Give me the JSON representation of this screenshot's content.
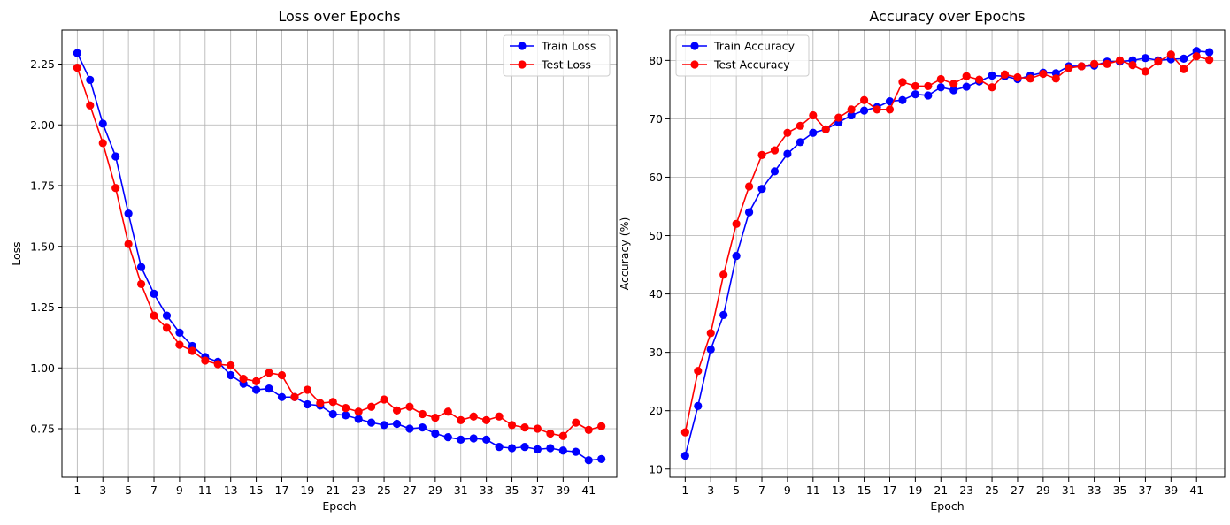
{
  "chart_data": [
    {
      "type": "line",
      "title": "Loss over Epochs",
      "xlabel": "Epoch",
      "ylabel": "Loss",
      "xlim": [
        -0.2,
        43.2
      ],
      "ylim": [
        0.55,
        2.39
      ],
      "xticks": [
        1,
        3,
        5,
        7,
        9,
        11,
        13,
        15,
        17,
        19,
        21,
        23,
        25,
        27,
        29,
        31,
        33,
        35,
        37,
        39,
        41
      ],
      "yticks": [
        0.75,
        1.0,
        1.25,
        1.5,
        1.75,
        2.0,
        2.25
      ],
      "ytick_labels": [
        "0.75",
        "1.00",
        "1.25",
        "1.50",
        "1.75",
        "2.00",
        "2.25"
      ],
      "grid": true,
      "legend": "top-right",
      "x": [
        1,
        2,
        3,
        4,
        5,
        6,
        7,
        8,
        9,
        10,
        11,
        12,
        13,
        14,
        15,
        16,
        17,
        18,
        19,
        20,
        21,
        22,
        23,
        24,
        25,
        26,
        27,
        28,
        29,
        30,
        31,
        32,
        33,
        34,
        35,
        36,
        37,
        38,
        39,
        40,
        41,
        42
      ],
      "series": [
        {
          "name": "Train Loss",
          "color": "#0000ff",
          "values": [
            2.295,
            2.185,
            2.005,
            1.87,
            1.635,
            1.415,
            1.305,
            1.215,
            1.145,
            1.09,
            1.045,
            1.025,
            0.97,
            0.935,
            0.91,
            0.915,
            0.88,
            0.88,
            0.85,
            0.845,
            0.81,
            0.805,
            0.79,
            0.775,
            0.765,
            0.77,
            0.75,
            0.755,
            0.73,
            0.715,
            0.705,
            0.71,
            0.705,
            0.675,
            0.67,
            0.675,
            0.665,
            0.67,
            0.66,
            0.655,
            0.62,
            0.625
          ]
        },
        {
          "name": "Test Loss",
          "color": "#ff0000",
          "values": [
            2.235,
            2.08,
            1.925,
            1.74,
            1.51,
            1.345,
            1.215,
            1.165,
            1.095,
            1.07,
            1.03,
            1.015,
            1.01,
            0.955,
            0.945,
            0.98,
            0.97,
            0.88,
            0.91,
            0.855,
            0.86,
            0.835,
            0.82,
            0.84,
            0.87,
            0.825,
            0.84,
            0.81,
            0.795,
            0.82,
            0.785,
            0.8,
            0.785,
            0.8,
            0.765,
            0.755,
            0.75,
            0.73,
            0.72,
            0.775,
            0.745,
            0.76
          ]
        }
      ]
    },
    {
      "type": "line",
      "title": "Accuracy over Epochs",
      "xlabel": "Epoch",
      "ylabel": "Accuracy (%)",
      "xlim": [
        -0.2,
        43.2
      ],
      "ylim": [
        8.6,
        85.2
      ],
      "xticks": [
        1,
        3,
        5,
        7,
        9,
        11,
        13,
        15,
        17,
        19,
        21,
        23,
        25,
        27,
        29,
        31,
        33,
        35,
        37,
        39,
        41
      ],
      "yticks": [
        10,
        20,
        30,
        40,
        50,
        60,
        70,
        80
      ],
      "ytick_labels": [
        "10",
        "20",
        "30",
        "40",
        "50",
        "60",
        "70",
        "80"
      ],
      "grid": true,
      "legend": "top-left",
      "x": [
        1,
        2,
        3,
        4,
        5,
        6,
        7,
        8,
        9,
        10,
        11,
        12,
        13,
        14,
        15,
        16,
        17,
        18,
        19,
        20,
        21,
        22,
        23,
        24,
        25,
        26,
        27,
        28,
        29,
        30,
        31,
        32,
        33,
        34,
        35,
        36,
        37,
        38,
        39,
        40,
        41,
        42
      ],
      "series": [
        {
          "name": "Train Accuracy",
          "color": "#0000ff",
          "values": [
            12.3,
            20.8,
            30.5,
            36.4,
            46.5,
            54.0,
            58.0,
            61.0,
            64.0,
            66.0,
            67.6,
            68.2,
            69.4,
            70.6,
            71.4,
            72.0,
            73.0,
            73.2,
            74.2,
            74.0,
            75.4,
            74.9,
            75.5,
            76.4,
            77.4,
            77.3,
            76.8,
            77.4,
            77.9,
            77.8,
            79.0,
            79.0,
            79.1,
            79.8,
            79.8,
            80.0,
            80.4,
            80.0,
            80.2,
            80.3,
            81.6,
            81.4
          ]
        },
        {
          "name": "Test Accuracy",
          "color": "#ff0000",
          "values": [
            16.3,
            26.8,
            33.3,
            43.3,
            52.0,
            58.4,
            63.8,
            64.6,
            67.6,
            68.8,
            70.6,
            68.2,
            70.2,
            71.6,
            73.2,
            71.6,
            71.6,
            76.3,
            75.6,
            75.6,
            76.8,
            76.0,
            77.3,
            76.7,
            75.4,
            77.6,
            77.1,
            76.9,
            77.7,
            76.9,
            78.7,
            79.0,
            79.4,
            79.4,
            80.0,
            79.2,
            78.1,
            79.8,
            81.0,
            78.5,
            80.7,
            80.1
          ]
        }
      ]
    }
  ]
}
